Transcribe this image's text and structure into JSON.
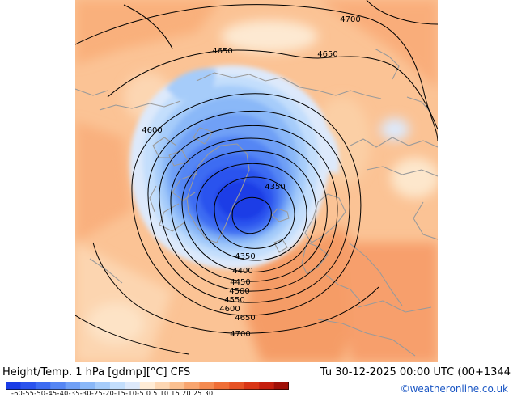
{
  "header": {
    "title": "Height/Temp. 1 hPa [gdmp][°C] CFS",
    "valid_time": "Tu 30-12-2025 00:00 UTC (00+1344",
    "credit": "©weatheronline.co.uk"
  },
  "contour_labels": [
    "4700",
    "4650",
    "4650",
    "4600",
    "4350",
    "4350",
    "4400",
    "4450",
    "4500",
    "4550",
    "4600",
    "4650",
    "4700"
  ],
  "colorbar": {
    "labels_text": "-60-55-50-45-40-35-30-25-20-15-10-5 0 5 10 15 20 25 30",
    "colors": [
      "#1a3ce6",
      "#2a53ee",
      "#3d6cf2",
      "#5586f4",
      "#70a0f6",
      "#8ab8f8",
      "#a6ccfa",
      "#c3defc",
      "#dde9fb",
      "#ffecd6",
      "#fdd7b3",
      "#fbc090",
      "#f8a56f",
      "#f48a50",
      "#ef6e36",
      "#e65224",
      "#d93515",
      "#c51f0e",
      "#a01008"
    ]
  }
}
